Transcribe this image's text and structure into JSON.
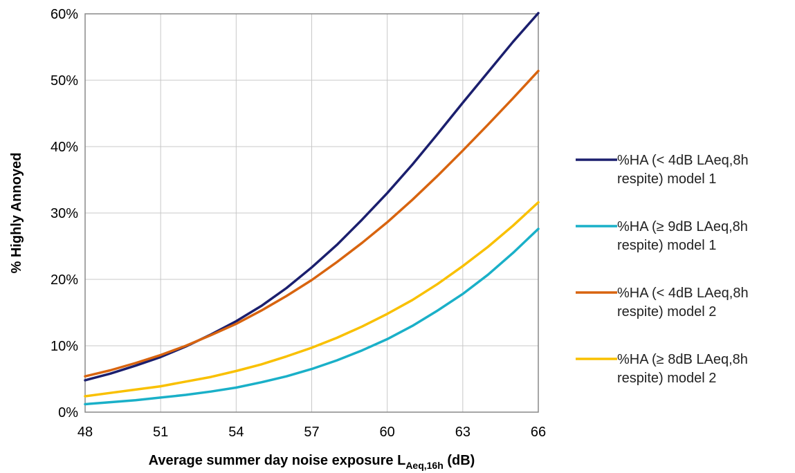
{
  "chart_data": {
    "type": "line",
    "xlabel_main": "Average summer day noise exposure L",
    "xlabel_sub": "Aeq,16h",
    "xlabel_suffix": " (dB)",
    "ylabel": "% Highly Annoyed",
    "xlim": [
      48,
      66
    ],
    "ylim": [
      0,
      0.6
    ],
    "x_ticks": [
      48,
      51,
      54,
      57,
      60,
      63,
      66
    ],
    "y_ticks": [
      0,
      0.1,
      0.2,
      0.3,
      0.4,
      0.5,
      0.6
    ],
    "y_tick_labels": [
      "0%",
      "10%",
      "20%",
      "30%",
      "40%",
      "50%",
      "60%"
    ],
    "grid": true,
    "legend_position": "right",
    "x": [
      48,
      49,
      50,
      51,
      52,
      53,
      54,
      55,
      56,
      57,
      58,
      59,
      60,
      61,
      62,
      63,
      64,
      65,
      66
    ],
    "series": [
      {
        "name_lines": [
          "%HA (< 4dB LAeq,8h",
          "respite) model 1"
        ],
        "color": "#1b1f6e",
        "values": [
          0.048,
          0.058,
          0.07,
          0.083,
          0.099,
          0.117,
          0.137,
          0.16,
          0.187,
          0.218,
          0.252,
          0.29,
          0.33,
          0.373,
          0.419,
          0.466,
          0.512,
          0.558,
          0.601
        ]
      },
      {
        "name_lines": [
          "%HA (≥ 9dB LAeq,8h",
          "respite) model 1"
        ],
        "color": "#1ab0c8",
        "values": [
          0.012,
          0.015,
          0.018,
          0.022,
          0.026,
          0.031,
          0.037,
          0.045,
          0.054,
          0.065,
          0.078,
          0.093,
          0.11,
          0.13,
          0.153,
          0.178,
          0.207,
          0.24,
          0.276
        ]
      },
      {
        "name_lines": [
          "%HA (< 4dB LAeq,8h",
          "respite) model 2"
        ],
        "color": "#d8640f",
        "values": [
          0.054,
          0.063,
          0.074,
          0.086,
          0.1,
          0.116,
          0.133,
          0.153,
          0.175,
          0.199,
          0.226,
          0.255,
          0.286,
          0.32,
          0.356,
          0.394,
          0.433,
          0.473,
          0.514
        ]
      },
      {
        "name_lines": [
          "%HA (≥ 8dB LAeq,8h",
          "respite) model 2"
        ],
        "color": "#f9c000",
        "values": [
          0.024,
          0.029,
          0.034,
          0.039,
          0.046,
          0.053,
          0.062,
          0.072,
          0.084,
          0.097,
          0.112,
          0.129,
          0.148,
          0.169,
          0.193,
          0.22,
          0.249,
          0.281,
          0.316
        ]
      }
    ]
  }
}
